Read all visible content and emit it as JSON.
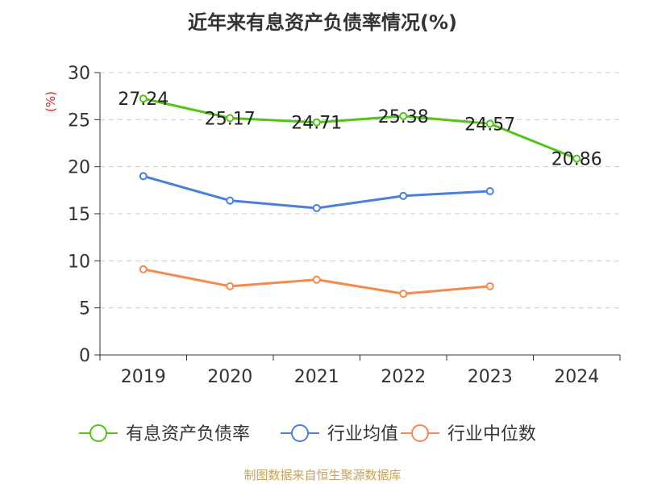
{
  "title": "近年来有息资产负债率情况(%)",
  "source": "制图数据来自恒生聚源数据库",
  "chart_data": {
    "type": "line",
    "categories": [
      "2019",
      "2020",
      "2021",
      "2022",
      "2023",
      "2024"
    ],
    "ylabel": "(%)",
    "ylim": [
      0,
      30
    ],
    "yticks": [
      0,
      5,
      10,
      15,
      20,
      25,
      30
    ],
    "grid": true,
    "legend_position": "bottom",
    "series": [
      {
        "name": "有息资产负债率",
        "color": "#52c41a",
        "values": [
          27.24,
          25.17,
          24.71,
          25.38,
          24.57,
          20.86
        ],
        "labels": [
          "27.24",
          "25.17",
          "24.71",
          "25.38",
          "24.57",
          "20.86"
        ]
      },
      {
        "name": "行业均值",
        "color": "#4a7fdc",
        "values": [
          19.0,
          16.4,
          15.6,
          16.9,
          17.4,
          null
        ]
      },
      {
        "name": "行业中位数",
        "color": "#f58a50",
        "values": [
          9.1,
          7.3,
          8.0,
          6.5,
          7.3,
          null
        ]
      }
    ]
  }
}
